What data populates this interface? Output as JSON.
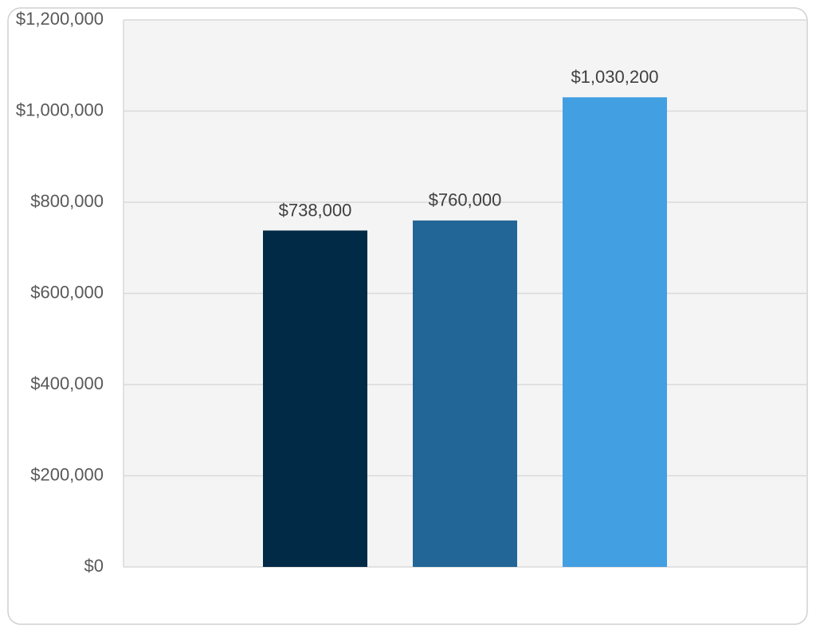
{
  "chart_data": {
    "type": "bar",
    "categories": [
      null
    ],
    "series": [
      {
        "color": "#012a47",
        "values": [
          738000
        ],
        "value_labels": [
          "$738,000"
        ]
      },
      {
        "color": "#226697",
        "values": [
          760000
        ],
        "value_labels": [
          "$760,000"
        ]
      },
      {
        "color": "#429fe2",
        "values": [
          1030200
        ],
        "value_labels": [
          "$1,030,200"
        ]
      }
    ],
    "ylim": [
      0,
      1200000
    ],
    "yticks": [
      {
        "value": 0,
        "label": "$0"
      },
      {
        "value": 200000,
        "label": "$200,000"
      },
      {
        "value": 400000,
        "label": "$400,000"
      },
      {
        "value": 600000,
        "label": "$600,000"
      },
      {
        "value": 800000,
        "label": "$800,000"
      },
      {
        "value": 1000000,
        "label": "$1,000,000"
      },
      {
        "value": 1200000,
        "label": "$1,200,000"
      }
    ],
    "grid": true
  }
}
